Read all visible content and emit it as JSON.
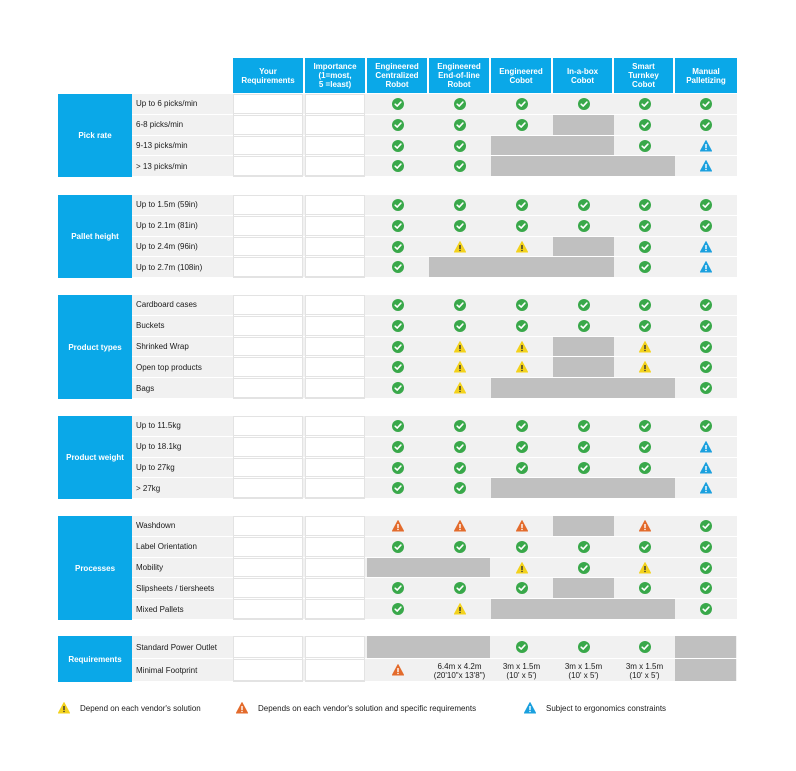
{
  "headers": [
    "Your\nRequirements",
    "Importance\n(1=most,\n5 =least)",
    "Engineered\nCentralized\nRobot",
    "Engineered\nEnd-of-line\nRobot",
    "Engineered\nCobot",
    "In-a-box\nCobot",
    "Smart\nTurnkey\nCobot",
    "Manual\nPalletizing"
  ],
  "colors": {
    "header": "#0aa8e8",
    "check": "#39a84a",
    "warn_yellow": "#f3d21c",
    "warn_orange": "#e36b2c",
    "warn_blue": "#1aa0de",
    "na_gray": "#c0c0c0"
  },
  "sections": [
    {
      "name": "Pick rate",
      "rows": [
        {
          "label": "Up to 6 picks/min",
          "cells": [
            "check",
            "check",
            "check",
            "check",
            "check",
            "check"
          ]
        },
        {
          "label": "6-8 picks/min",
          "cells": [
            "check",
            "check",
            "check",
            "gray",
            "check",
            "check"
          ]
        },
        {
          "label": "9-13 picks/min",
          "cells": [
            "check",
            "check",
            "gray",
            "gray",
            "check",
            "blue"
          ]
        },
        {
          "label": "> 13 picks/min",
          "cells": [
            "check",
            "check",
            "gray",
            "gray",
            "gray",
            "blue"
          ]
        }
      ]
    },
    {
      "name": "Pallet height",
      "rows": [
        {
          "label": "Up to 1.5m (59in)",
          "cells": [
            "check",
            "check",
            "check",
            "check",
            "check",
            "check"
          ]
        },
        {
          "label": "Up to 2.1m (81in)",
          "cells": [
            "check",
            "check",
            "check",
            "check",
            "check",
            "check"
          ]
        },
        {
          "label": "Up to 2.4m (96in)",
          "cells": [
            "check",
            "yellow",
            "yellow",
            "gray",
            "check",
            "blue"
          ]
        },
        {
          "label": "Up to 2.7m (108in)",
          "cells": [
            "check",
            "gray",
            "gray",
            "gray",
            "check",
            "blue"
          ]
        }
      ]
    },
    {
      "name": "Product types",
      "rows": [
        {
          "label": "Cardboard cases",
          "cells": [
            "check",
            "check",
            "check",
            "check",
            "check",
            "check"
          ]
        },
        {
          "label": "Buckets",
          "cells": [
            "check",
            "check",
            "check",
            "check",
            "check",
            "check"
          ]
        },
        {
          "label": "Shrinked Wrap",
          "cells": [
            "check",
            "yellow",
            "yellow",
            "gray",
            "yellow",
            "check"
          ]
        },
        {
          "label": "Open top products",
          "cells": [
            "check",
            "yellow",
            "yellow",
            "gray",
            "yellow",
            "check"
          ]
        },
        {
          "label": "Bags",
          "cells": [
            "check",
            "yellow",
            "gray",
            "gray",
            "gray",
            "check"
          ]
        }
      ]
    },
    {
      "name": "Product weight",
      "rows": [
        {
          "label": "Up to 11.5kg",
          "cells": [
            "check",
            "check",
            "check",
            "check",
            "check",
            "check"
          ]
        },
        {
          "label": "Up to 18.1kg",
          "cells": [
            "check",
            "check",
            "check",
            "check",
            "check",
            "blue"
          ]
        },
        {
          "label": "Up to 27kg",
          "cells": [
            "check",
            "check",
            "check",
            "check",
            "check",
            "blue"
          ]
        },
        {
          "label": "> 27kg",
          "cells": [
            "check",
            "check",
            "gray",
            "gray",
            "gray",
            "blue"
          ]
        }
      ]
    },
    {
      "name": "Processes",
      "rows": [
        {
          "label": "Washdown",
          "cells": [
            "orange",
            "orange",
            "orange",
            "gray",
            "orange",
            "check"
          ]
        },
        {
          "label": "Label Orientation",
          "cells": [
            "check",
            "check",
            "check",
            "check",
            "check",
            "check"
          ]
        },
        {
          "label": "Mobility",
          "cells": [
            "gray",
            "gray",
            "yellow",
            "check",
            "yellow",
            "check"
          ]
        },
        {
          "label": "Slipsheets / tiersheets",
          "cells": [
            "check",
            "check",
            "check",
            "gray",
            "check",
            "check"
          ]
        },
        {
          "label": "Mixed Pallets",
          "cells": [
            "check",
            "yellow",
            "gray",
            "gray",
            "gray",
            "check"
          ]
        }
      ]
    },
    {
      "name": "Requirements",
      "rows": [
        {
          "label": "Standard Power Outlet",
          "cells": [
            "gray",
            "gray",
            "check",
            "check",
            "check",
            "gray"
          ]
        },
        {
          "label": "Minimal Footprint",
          "cells": [
            "orange",
            "6.4m x 4.2m\n(20'10\"x 13'8\")",
            "3m x 1.5m\n(10' x 5')",
            "3m x 1.5m\n(10' x 5')",
            "3m x 1.5m\n(10' x 5')",
            "gray"
          ]
        }
      ]
    }
  ],
  "legend": [
    {
      "icon": "yellow",
      "text": "Depend on each vendor's solution"
    },
    {
      "icon": "orange",
      "text": "Depends on each vendor's solution and specific requirements"
    },
    {
      "icon": "blue",
      "text": "Subject to ergonomics constraints"
    }
  ]
}
